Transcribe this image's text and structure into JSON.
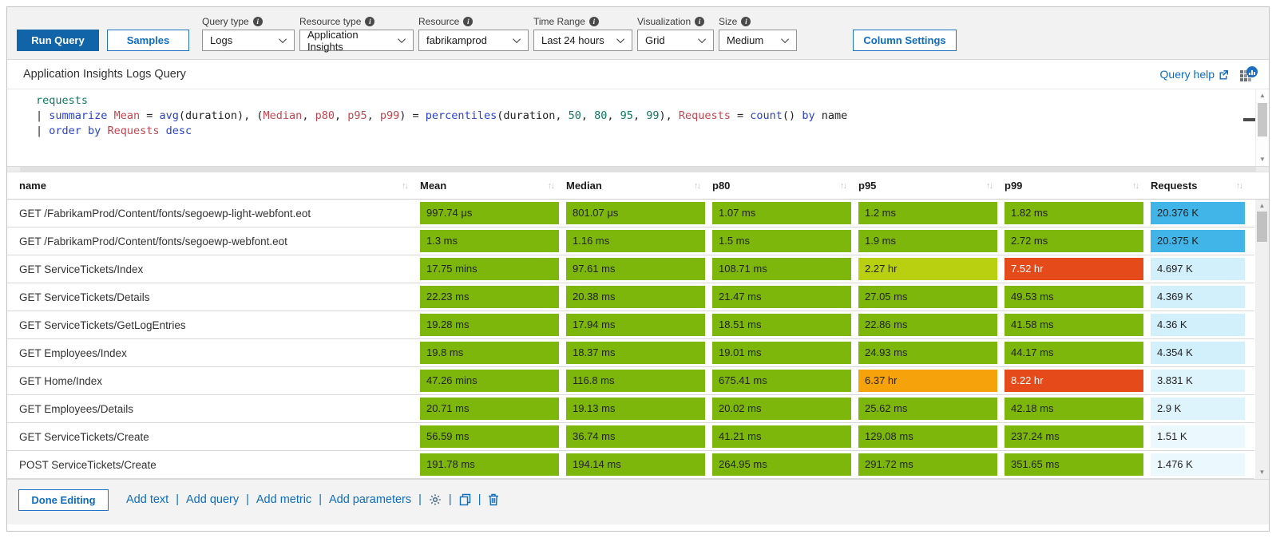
{
  "colors": {
    "accent_blue": "#0f6cbd",
    "run_query_bg": "#1164a8",
    "heat_green": "#7eb70c",
    "heat_yellow": "#b8d010",
    "heat_amber": "#f6a30b",
    "heat_red": "#e54a1a",
    "requests_strong_blue": "#41b4e8",
    "requests_pale_blue": "#d2effc"
  },
  "toolbar": {
    "run_query_label": "Run Query",
    "samples_label": "Samples",
    "column_settings_label": "Column Settings",
    "dropdowns": [
      {
        "label": "Query type",
        "value": "Logs",
        "w": "w-logs"
      },
      {
        "label": "Resource type",
        "value": "Application Insights",
        "w": "w-rtype"
      },
      {
        "label": "Resource",
        "value": "fabrikamprod",
        "w": "w-res"
      },
      {
        "label": "Time Range",
        "value": "Last 24 hours",
        "w": "w-time"
      },
      {
        "label": "Visualization",
        "value": "Grid",
        "w": "w-vis"
      },
      {
        "label": "Size",
        "value": "Medium",
        "w": "w-size"
      }
    ]
  },
  "query_panel": {
    "title": "Application Insights Logs Query",
    "help_label": "Query help",
    "plain_code": "requests\n| summarize Mean = avg(duration), (Median, p80, p95, p99) = percentiles(duration, 50, 80, 95, 99), Requests = count() by name\n| order by Requests desc",
    "code": [
      [
        {
          "t": "requests",
          "c": "tbl"
        }
      ],
      [
        {
          "t": "| ",
          "c": "pl"
        },
        {
          "t": "summarize",
          "c": "kw"
        },
        {
          "t": " ",
          "c": "pl"
        },
        {
          "t": "Mean",
          "c": "col"
        },
        {
          "t": " = ",
          "c": "pl"
        },
        {
          "t": "avg",
          "c": "fn"
        },
        {
          "t": "(duration), (",
          "c": "pl"
        },
        {
          "t": "Median",
          "c": "col"
        },
        {
          "t": ", ",
          "c": "pl"
        },
        {
          "t": "p80",
          "c": "col"
        },
        {
          "t": ", ",
          "c": "pl"
        },
        {
          "t": "p95",
          "c": "col"
        },
        {
          "t": ", ",
          "c": "pl"
        },
        {
          "t": "p99",
          "c": "col"
        },
        {
          "t": ") = ",
          "c": "pl"
        },
        {
          "t": "percentiles",
          "c": "fn"
        },
        {
          "t": "(duration, ",
          "c": "pl"
        },
        {
          "t": "50",
          "c": "num"
        },
        {
          "t": ", ",
          "c": "pl"
        },
        {
          "t": "80",
          "c": "num"
        },
        {
          "t": ", ",
          "c": "pl"
        },
        {
          "t": "95",
          "c": "num"
        },
        {
          "t": ", ",
          "c": "pl"
        },
        {
          "t": "99",
          "c": "num"
        },
        {
          "t": "), ",
          "c": "pl"
        },
        {
          "t": "Requests",
          "c": "col"
        },
        {
          "t": " = ",
          "c": "pl"
        },
        {
          "t": "count",
          "c": "fn"
        },
        {
          "t": "() ",
          "c": "pl"
        },
        {
          "t": "by",
          "c": "kw"
        },
        {
          "t": " name",
          "c": "pl"
        }
      ],
      [
        {
          "t": "| ",
          "c": "pl"
        },
        {
          "t": "order by",
          "c": "kw"
        },
        {
          "t": " ",
          "c": "pl"
        },
        {
          "t": "Requests",
          "c": "col"
        },
        {
          "t": " ",
          "c": "pl"
        },
        {
          "t": "desc",
          "c": "kw"
        }
      ]
    ]
  },
  "grid": {
    "columns": [
      "name",
      "Mean",
      "Median",
      "p80",
      "p95",
      "p99",
      "Requests"
    ],
    "rows": [
      {
        "name": "GET /FabrikamProd/Content/fonts/segoewp-light-webfont.eot",
        "metrics": [
          {
            "v": "997.74 μs",
            "c": "green"
          },
          {
            "v": "801.07 μs",
            "c": "green"
          },
          {
            "v": "1.07 ms",
            "c": "green"
          },
          {
            "v": "1.2 ms",
            "c": "green"
          },
          {
            "v": "1.82 ms",
            "c": "green"
          }
        ],
        "requests": {
          "v": "20.376 K",
          "c": "blue1"
        }
      },
      {
        "name": "GET /FabrikamProd/Content/fonts/segoewp-webfont.eot",
        "metrics": [
          {
            "v": "1.3 ms",
            "c": "green"
          },
          {
            "v": "1.16 ms",
            "c": "green"
          },
          {
            "v": "1.5 ms",
            "c": "green"
          },
          {
            "v": "1.9 ms",
            "c": "green"
          },
          {
            "v": "2.72 ms",
            "c": "green"
          }
        ],
        "requests": {
          "v": "20.375 K",
          "c": "blue1"
        }
      },
      {
        "name": "GET ServiceTickets/Index",
        "metrics": [
          {
            "v": "17.75 mins",
            "c": "green"
          },
          {
            "v": "97.61 ms",
            "c": "green"
          },
          {
            "v": "108.71 ms",
            "c": "green"
          },
          {
            "v": "2.27 hr",
            "c": "yellow"
          },
          {
            "v": "7.52 hr",
            "c": "red"
          }
        ],
        "requests": {
          "v": "4.697 K",
          "c": "blue2"
        }
      },
      {
        "name": "GET ServiceTickets/Details",
        "metrics": [
          {
            "v": "22.23 ms",
            "c": "green"
          },
          {
            "v": "20.38 ms",
            "c": "green"
          },
          {
            "v": "21.47 ms",
            "c": "green"
          },
          {
            "v": "27.05 ms",
            "c": "green"
          },
          {
            "v": "49.53 ms",
            "c": "green"
          }
        ],
        "requests": {
          "v": "4.369 K",
          "c": "blue2"
        }
      },
      {
        "name": "GET ServiceTickets/GetLogEntries",
        "metrics": [
          {
            "v": "19.28 ms",
            "c": "green"
          },
          {
            "v": "17.94 ms",
            "c": "green"
          },
          {
            "v": "18.51 ms",
            "c": "green"
          },
          {
            "v": "22.86 ms",
            "c": "green"
          },
          {
            "v": "41.58 ms",
            "c": "green"
          }
        ],
        "requests": {
          "v": "4.36 K",
          "c": "blue2"
        }
      },
      {
        "name": "GET Employees/Index",
        "metrics": [
          {
            "v": "19.8 ms",
            "c": "green"
          },
          {
            "v": "18.37 ms",
            "c": "green"
          },
          {
            "v": "19.01 ms",
            "c": "green"
          },
          {
            "v": "24.93 ms",
            "c": "green"
          },
          {
            "v": "44.17 ms",
            "c": "green"
          }
        ],
        "requests": {
          "v": "4.354 K",
          "c": "blue2"
        }
      },
      {
        "name": "GET Home/Index",
        "metrics": [
          {
            "v": "47.26 mins",
            "c": "green"
          },
          {
            "v": "116.8 ms",
            "c": "green"
          },
          {
            "v": "675.41 ms",
            "c": "green"
          },
          {
            "v": "6.37 hr",
            "c": "amber"
          },
          {
            "v": "8.22 hr",
            "c": "red"
          }
        ],
        "requests": {
          "v": "3.831 K",
          "c": "blue3"
        }
      },
      {
        "name": "GET Employees/Details",
        "metrics": [
          {
            "v": "20.71 ms",
            "c": "green"
          },
          {
            "v": "19.13 ms",
            "c": "green"
          },
          {
            "v": "20.02 ms",
            "c": "green"
          },
          {
            "v": "25.62 ms",
            "c": "green"
          },
          {
            "v": "42.18 ms",
            "c": "green"
          }
        ],
        "requests": {
          "v": "2.9 K",
          "c": "blue3"
        }
      },
      {
        "name": "GET ServiceTickets/Create",
        "metrics": [
          {
            "v": "56.59 ms",
            "c": "green"
          },
          {
            "v": "36.74 ms",
            "c": "green"
          },
          {
            "v": "41.21 ms",
            "c": "green"
          },
          {
            "v": "129.08 ms",
            "c": "green"
          },
          {
            "v": "237.24 ms",
            "c": "green"
          }
        ],
        "requests": {
          "v": "1.51 K",
          "c": "blue4"
        }
      },
      {
        "name": "POST ServiceTickets/Create",
        "metrics": [
          {
            "v": "191.78 ms",
            "c": "green"
          },
          {
            "v": "194.14 ms",
            "c": "green"
          },
          {
            "v": "264.95 ms",
            "c": "green"
          },
          {
            "v": "291.72 ms",
            "c": "green"
          },
          {
            "v": "351.65 ms",
            "c": "green"
          }
        ],
        "requests": {
          "v": "1.476 K",
          "c": "blue4"
        }
      }
    ]
  },
  "footer": {
    "done_label": "Done Editing",
    "links": [
      "Add text",
      "Add query",
      "Add metric",
      "Add parameters"
    ],
    "icon_actions": [
      "settings",
      "copy",
      "delete"
    ]
  }
}
